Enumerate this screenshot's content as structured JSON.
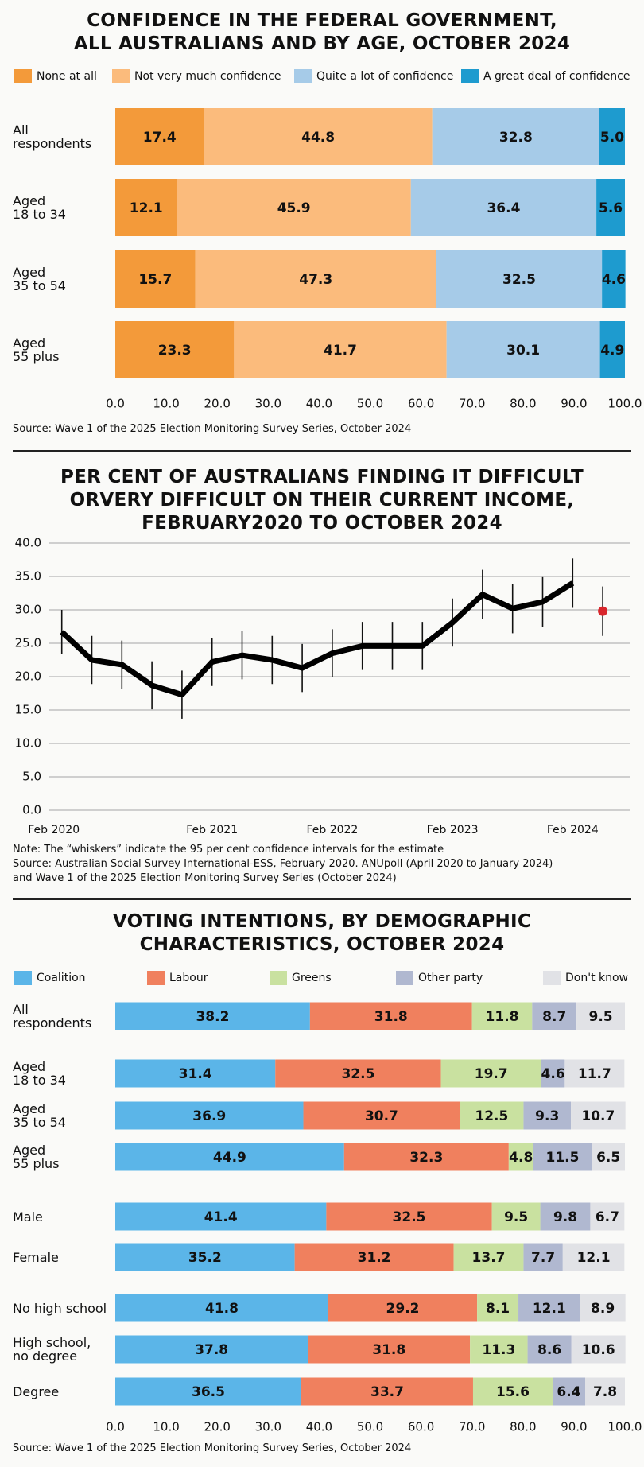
{
  "chart_data": [
    {
      "type": "hbar-stacked",
      "title": "CONFIDENCE IN THE FEDERAL GOVERNMENT,\nALL AUSTRALIANS AND BY AGE, OCTOBER 2024",
      "categories": [
        "All\nrespondents",
        "Aged\n18 to 34",
        "Aged\n35 to 54",
        "Aged\n55 plus"
      ],
      "series": [
        {
          "name": "None at all",
          "color": "#f39a3a",
          "values": [
            17.4,
            12.1,
            15.7,
            23.3
          ]
        },
        {
          "name": "Not very much confidence",
          "color": "#fbbb7c",
          "values": [
            44.8,
            45.9,
            47.3,
            41.7
          ]
        },
        {
          "name": "Quite a lot of confidence",
          "color": "#a6cbe8",
          "values": [
            32.8,
            36.4,
            32.5,
            30.1
          ]
        },
        {
          "name": "A great deal of confidence",
          "color": "#1e9bcf",
          "values": [
            5.0,
            5.6,
            4.6,
            4.9
          ],
          "value_labels": [
            "5.0",
            "5.6",
            "4.6",
            "4.9"
          ]
        }
      ],
      "xlim": [
        0,
        100
      ],
      "xticks": [
        {
          "value": 0,
          "label": "0.0"
        },
        {
          "value": 10,
          "label": "10.0"
        },
        {
          "value": 20,
          "label": "20.0"
        },
        {
          "value": 30,
          "label": "30.0"
        },
        {
          "value": 40,
          "label": "40.0"
        },
        {
          "value": 50,
          "label": "50.0"
        },
        {
          "value": 60,
          "label": "60.0"
        },
        {
          "value": 70,
          "label": "70.0"
        },
        {
          "value": 80,
          "label": "80.0"
        },
        {
          "value": 90,
          "label": "90.0"
        },
        {
          "value": 100,
          "label": "100.0"
        }
      ],
      "source": "Source: Wave 1 of the 2025 Election Monitoring Survey Series, October 2024"
    },
    {
      "type": "line-error",
      "title": "PER CENT OF AUSTRALIANS FINDING IT DIFFICULT\nORVERY DIFFICULT ON THEIR CURRENT INCOME,\nFEBRUARY2020 TO OCTOBER 2024",
      "categories": [
        "Feb 2020",
        null,
        null,
        null,
        null,
        "Feb 2021",
        null,
        null,
        null,
        "Feb 2022",
        null,
        null,
        null,
        "Feb 2023",
        null,
        null,
        null,
        "Feb 2024",
        null
      ],
      "series": [
        {
          "color": "#000000",
          "values": [
            26.7,
            22.5,
            21.8,
            18.7,
            17.3,
            22.2,
            23.2,
            22.5,
            21.3,
            23.5,
            24.6,
            24.6,
            24.6,
            28.1,
            32.3,
            30.2,
            31.2,
            34.0,
            null
          ],
          "errors": [
            3.3,
            3.6,
            3.6,
            3.6,
            3.6,
            3.6,
            3.6,
            3.6,
            3.6,
            3.6,
            3.6,
            3.6,
            3.6,
            3.6,
            3.7,
            3.7,
            3.7,
            3.7,
            null
          ]
        },
        {
          "color": "#d9262c",
          "values": [
            null,
            null,
            null,
            null,
            null,
            null,
            null,
            null,
            null,
            null,
            null,
            null,
            null,
            null,
            null,
            null,
            null,
            null,
            29.8
          ],
          "errors": [
            null,
            null,
            null,
            null,
            null,
            null,
            null,
            null,
            null,
            null,
            null,
            null,
            null,
            null,
            null,
            null,
            null,
            null,
            3.7
          ]
        }
      ],
      "ylim": [
        0,
        40
      ],
      "yticks": [
        {
          "value": 0,
          "label": "0.0"
        },
        {
          "value": 5,
          "label": "5.0"
        },
        {
          "value": 10,
          "label": "10.0"
        },
        {
          "value": 15,
          "label": "15.0"
        },
        {
          "value": 20,
          "label": "20.0"
        },
        {
          "value": 25,
          "label": "25.0"
        },
        {
          "value": 30,
          "label": "30.0"
        },
        {
          "value": 35,
          "label": "35.0"
        },
        {
          "value": 40,
          "label": "40.0"
        }
      ],
      "grid": true,
      "note": "Note: The “whiskers” indicate the 95 per cent confidence intervals for the estimate",
      "source": "Source: Australian Social Survey International-ESS, February 2020. ANUpoll (April 2020 to January 2024)\nand Wave 1 of the 2025 Election Monitoring Survey Series (October 2024)"
    },
    {
      "type": "hbar-stacked",
      "title": "VOTING INTENTIONS, BY DEMOGRAPHIC\nCHARACTERISTICS, OCTOBER 2024",
      "categories": [
        "All\nrespondents",
        "Aged\n18 to 34",
        "Aged\n35 to 54",
        "Aged\n55 plus",
        "Male",
        "Female",
        "No high school",
        "High school,\nno degree",
        "Degree"
      ],
      "series": [
        {
          "name": "Coalition",
          "color": "#5bb5e8",
          "values": [
            38.2,
            31.4,
            36.9,
            44.9,
            41.4,
            35.2,
            41.8,
            37.8,
            36.5
          ]
        },
        {
          "name": "Labour",
          "color": "#f0805e",
          "values": [
            31.8,
            32.5,
            30.7,
            32.3,
            32.5,
            31.2,
            29.2,
            31.8,
            33.7
          ]
        },
        {
          "name": "Greens",
          "color": "#c9e1a0",
          "values": [
            11.8,
            19.7,
            12.5,
            4.8,
            9.5,
            13.7,
            8.1,
            11.3,
            15.6
          ]
        },
        {
          "name": "Other party",
          "color": "#b0b8d0",
          "values": [
            8.7,
            4.6,
            9.3,
            11.5,
            9.8,
            7.7,
            12.1,
            8.6,
            6.4
          ]
        },
        {
          "name": "Don't know",
          "color": "#e1e2e6",
          "values": [
            9.5,
            11.7,
            10.7,
            6.5,
            6.7,
            12.1,
            8.9,
            10.6,
            7.8
          ]
        }
      ],
      "xlim": [
        0,
        100
      ],
      "xticks": [
        {
          "value": 0,
          "label": "0.0"
        },
        {
          "value": 10,
          "label": "10.0"
        },
        {
          "value": 20,
          "label": "20.0"
        },
        {
          "value": 30,
          "label": "30.0"
        },
        {
          "value": 40,
          "label": "40.0"
        },
        {
          "value": 50,
          "label": "50.0"
        },
        {
          "value": 60,
          "label": "60.0"
        },
        {
          "value": 70,
          "label": "70.0"
        },
        {
          "value": 80,
          "label": "80.0"
        },
        {
          "value": 90,
          "label": "90.0"
        },
        {
          "value": 100,
          "label": "100.0"
        }
      ],
      "source": "Source: Wave 1 of the 2025 Election Monitoring Survey Series, October 2024"
    }
  ]
}
